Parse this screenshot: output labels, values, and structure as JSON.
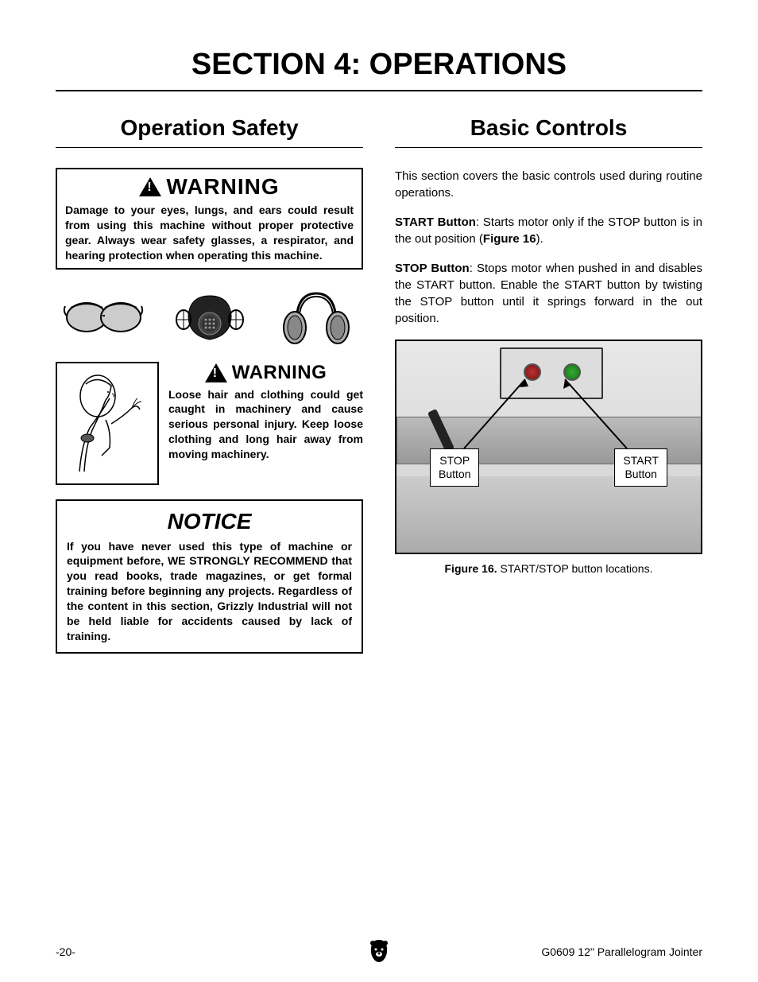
{
  "section_title": "SECTION 4: OPERATIONS",
  "left": {
    "title": "Operation Safety",
    "warning1_label": "WARNING",
    "warning1_text": "Damage to your eyes, lungs, and ears could result from using this machine without proper protective gear. Always wear safety glasses, a respirator, and hearing protection when operating this machine.",
    "warning2_label": "WARNING",
    "warning2_text": "Loose hair and clothing could get caught in machinery and cause serious personal injury. Keep loose clothing and long hair away from moving machinery.",
    "notice_title": "NOTICE",
    "notice_text": "If you have never used this type of machine or equipment before, WE STRONGLY RECOMMEND that you read books, trade magazines, or get formal training before beginning any projects. Regardless of the content in this section, Grizzly Industrial will not be held liable for accidents caused by lack of training."
  },
  "right": {
    "title": "Basic Controls",
    "intro": "This section covers the basic controls used during routine operations.",
    "start_label": "START Button",
    "start_text": ": Starts motor only if the STOP button is in the out position (",
    "start_fig_ref": "Figure 16",
    "start_text_end": ").",
    "stop_label": "STOP Button",
    "stop_text": ": Stops motor when pushed in and disables the START button. Enable the START button by twisting the STOP button until it springs forward in the out position.",
    "label_stop": "STOP Button",
    "label_start": "START Button",
    "figure_caption_bold": "Figure 16.",
    "figure_caption_rest": " START/STOP button locations."
  },
  "footer": {
    "page": "-20-",
    "product": "G0609 12\" Parallelogram Jointer"
  }
}
